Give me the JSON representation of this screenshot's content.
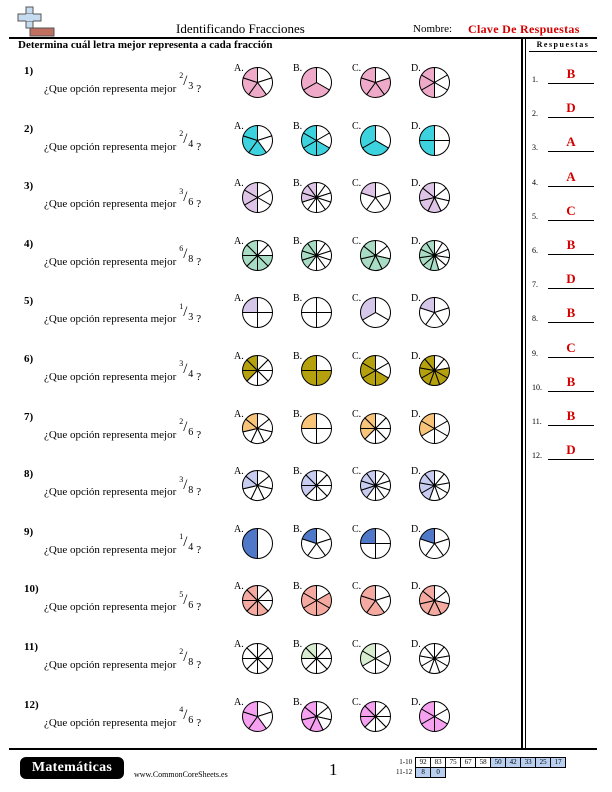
{
  "header": {
    "title": "Identificando Fracciones",
    "name_label": "Nombre:",
    "name_value": "Clave De Respuestas"
  },
  "instructions": "Determina cuál letra mejor representa a cada fracción",
  "answers": {
    "title": "Respuestas",
    "items": [
      {
        "num": "1.",
        "value": "B"
      },
      {
        "num": "2.",
        "value": "D"
      },
      {
        "num": "3.",
        "value": "A"
      },
      {
        "num": "4.",
        "value": "A"
      },
      {
        "num": "5.",
        "value": "C"
      },
      {
        "num": "6.",
        "value": "B"
      },
      {
        "num": "7.",
        "value": "D"
      },
      {
        "num": "8.",
        "value": "B"
      },
      {
        "num": "9.",
        "value": "C"
      },
      {
        "num": "10.",
        "value": "B"
      },
      {
        "num": "11.",
        "value": "B"
      },
      {
        "num": "12.",
        "value": "D"
      }
    ]
  },
  "option_letters": [
    "A.",
    "B.",
    "C.",
    "D."
  ],
  "questions": [
    {
      "num": "1)",
      "prompt": "¿Que opción representa mejor",
      "numerator": "2",
      "slash": "/",
      "denominator": "3",
      "end": "?",
      "color": "#eeaac8",
      "options": [
        {
          "slices": 5,
          "shaded": 3
        },
        {
          "slices": 3,
          "shaded": 2
        },
        {
          "slices": 5,
          "shaded": 4
        },
        {
          "slices": 6,
          "shaded": 3
        }
      ]
    },
    {
      "num": "2)",
      "prompt": "¿Que opción representa mejor",
      "numerator": "2",
      "slash": "/",
      "denominator": "4",
      "end": "?",
      "color": "#3cd3df",
      "options": [
        {
          "slices": 5,
          "shaded": 3
        },
        {
          "slices": 6,
          "shaded": 4
        },
        {
          "slices": 3,
          "shaded": 2
        },
        {
          "slices": 4,
          "shaded": 2
        }
      ]
    },
    {
      "num": "3)",
      "prompt": "¿Que opción representa mejor",
      "numerator": "3",
      "slash": "/",
      "denominator": "6",
      "end": "?",
      "color": "#dec4e6",
      "options": [
        {
          "slices": 6,
          "shaded": 3
        },
        {
          "slices": 10,
          "shaded": 3
        },
        {
          "slices": 5,
          "shaded": 1
        },
        {
          "slices": 7,
          "shaded": 4
        }
      ]
    },
    {
      "num": "4)",
      "prompt": "¿Que opción representa mejor",
      "numerator": "6",
      "slash": "/",
      "denominator": "8",
      "end": "?",
      "color": "#a9dcc4",
      "options": [
        {
          "slices": 8,
          "shaded": 6
        },
        {
          "slices": 10,
          "shaded": 4
        },
        {
          "slices": 7,
          "shaded": 5
        },
        {
          "slices": 11,
          "shaded": 6
        }
      ]
    },
    {
      "num": "5)",
      "prompt": "¿Que opción representa mejor",
      "numerator": "1",
      "slash": "/",
      "denominator": "3",
      "end": "?",
      "color": "#d4c7e9",
      "options": [
        {
          "slices": 4,
          "shaded": 1
        },
        {
          "slices": 4,
          "shaded": 0
        },
        {
          "slices": 3,
          "shaded": 1
        },
        {
          "slices": 5,
          "shaded": 1
        }
      ]
    },
    {
      "num": "6)",
      "prompt": "¿Que opción representa mejor",
      "numerator": "3",
      "slash": "/",
      "denominator": "4",
      "end": "?",
      "color": "#b5a00d",
      "options": [
        {
          "slices": 8,
          "shaded": 3
        },
        {
          "slices": 4,
          "shaded": 3
        },
        {
          "slices": 6,
          "shaded": 4
        },
        {
          "slices": 9,
          "shaded": 7
        }
      ]
    },
    {
      "num": "7)",
      "prompt": "¿Que opción representa mejor",
      "numerator": "2",
      "slash": "/",
      "denominator": "6",
      "end": "?",
      "color": "#f8c47a",
      "options": [
        {
          "slices": 7,
          "shaded": 2
        },
        {
          "slices": 4,
          "shaded": 1
        },
        {
          "slices": 8,
          "shaded": 3
        },
        {
          "slices": 6,
          "shaded": 2
        }
      ]
    },
    {
      "num": "8)",
      "prompt": "¿Que opción representa mejor",
      "numerator": "3",
      "slash": "/",
      "denominator": "8",
      "end": "?",
      "color": "#c8ccf0",
      "options": [
        {
          "slices": 7,
          "shaded": 2
        },
        {
          "slices": 8,
          "shaded": 3
        },
        {
          "slices": 10,
          "shaded": 4
        },
        {
          "slices": 9,
          "shaded": 4
        }
      ]
    },
    {
      "num": "9)",
      "prompt": "¿Que opción representa mejor",
      "numerator": "1",
      "slash": "/",
      "denominator": "4",
      "end": "?",
      "color": "#4f78c8",
      "options": [
        {
          "slices": 2,
          "shaded": 1
        },
        {
          "slices": 5,
          "shaded": 1
        },
        {
          "slices": 4,
          "shaded": 1
        },
        {
          "slices": 5,
          "shaded": 1
        }
      ]
    },
    {
      "num": "10)",
      "prompt": "¿Que opción representa mejor",
      "numerator": "5",
      "slash": "/",
      "denominator": "6",
      "end": "?",
      "color": "#f4aaa0",
      "options": [
        {
          "slices": 8,
          "shaded": 5
        },
        {
          "slices": 6,
          "shaded": 5
        },
        {
          "slices": 5,
          "shaded": 3
        },
        {
          "slices": 7,
          "shaded": 5
        }
      ]
    },
    {
      "num": "11)",
      "prompt": "¿Que opción representa mejor",
      "numerator": "2",
      "slash": "/",
      "denominator": "8",
      "end": "?",
      "color": "#d8eccf",
      "options": [
        {
          "slices": 8,
          "shaded": 0
        },
        {
          "slices": 8,
          "shaded": 2
        },
        {
          "slices": 6,
          "shaded": 2
        },
        {
          "slices": 9,
          "shaded": 0
        }
      ]
    },
    {
      "num": "12)",
      "prompt": "¿Que opción representa mejor",
      "numerator": "4",
      "slash": "/",
      "denominator": "6",
      "end": "?",
      "color": "#f6a0f0",
      "options": [
        {
          "slices": 5,
          "shaded": 3
        },
        {
          "slices": 7,
          "shaded": 4
        },
        {
          "slices": 8,
          "shaded": 3
        },
        {
          "slices": 6,
          "shaded": 4
        }
      ]
    }
  ],
  "footer": {
    "subject": "Matemáticas",
    "website": "www.CommonCoreSheets.es",
    "page": "1",
    "score_rows": [
      {
        "label": "1-10",
        "cells": [
          "92",
          "83",
          "75",
          "67",
          "58",
          "50",
          "42",
          "33",
          "25",
          "17"
        ],
        "blue_from": 5
      },
      {
        "label": "11-12",
        "cells": [
          "8",
          "0"
        ],
        "blue_from": 0
      }
    ]
  }
}
